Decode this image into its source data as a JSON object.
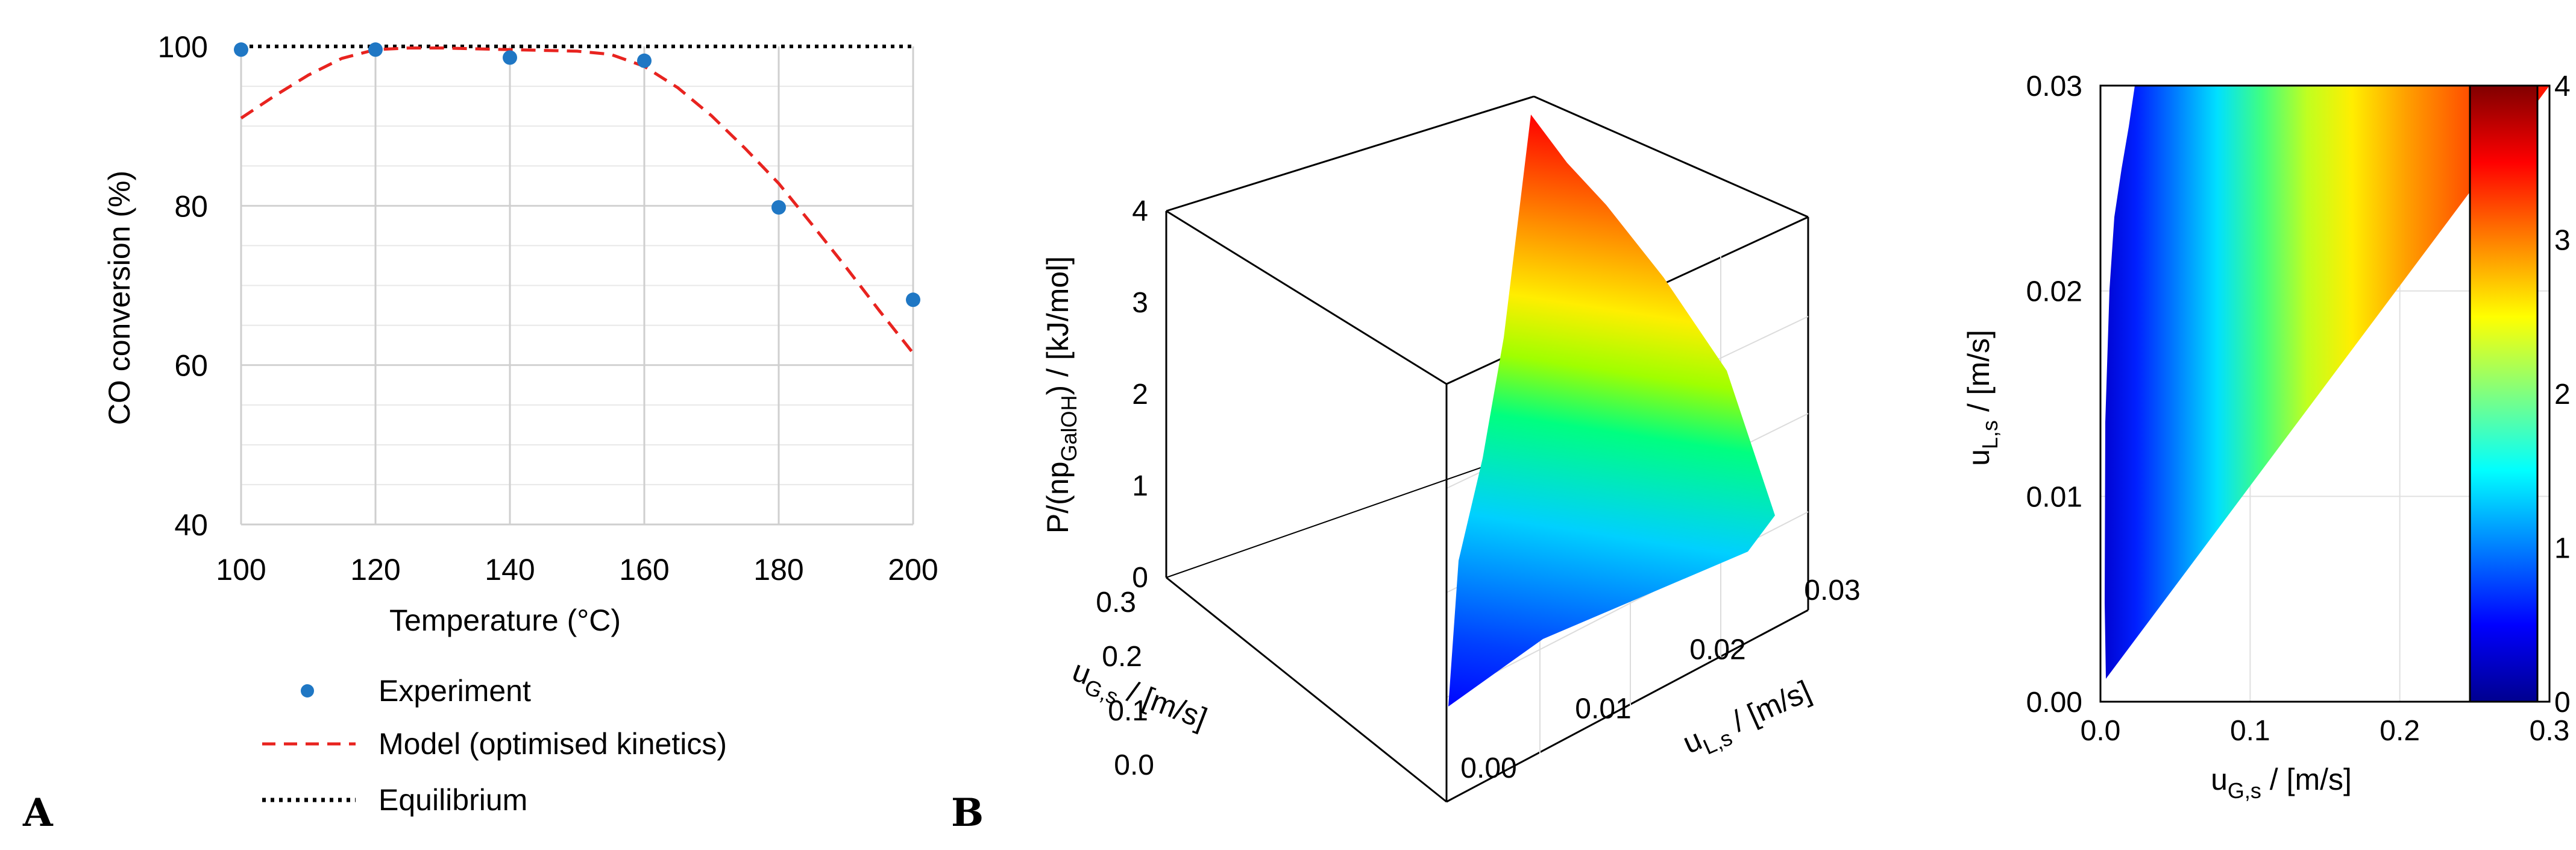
{
  "panels": {
    "a": "A",
    "b": "B"
  },
  "chart_data": [
    {
      "type": "scatter",
      "title": "",
      "xlabel": "Temperature (°C)",
      "ylabel": "CO conversion (%)",
      "xlim": [
        100,
        200
      ],
      "ylim": [
        40,
        100
      ],
      "xticks": [
        100,
        120,
        140,
        160,
        180,
        200
      ],
      "yticks": [
        40,
        60,
        80,
        100
      ],
      "grid": "on",
      "series": [
        {
          "name": "Experiment",
          "kind": "points",
          "color": "#1f77c4",
          "x": [
            100,
            120,
            140,
            160,
            180,
            200
          ],
          "y": [
            99.6,
            99.6,
            98.6,
            98.2,
            79.8,
            68.2
          ]
        },
        {
          "name": "Model (optimised kinetics)",
          "kind": "dashed-line",
          "color": "#e8231f",
          "x": [
            100,
            105,
            110,
            115,
            120,
            125,
            130,
            135,
            140,
            145,
            150,
            155,
            160,
            165,
            170,
            175,
            180,
            185,
            190,
            195,
            200
          ],
          "y": [
            91.0,
            93.8,
            96.4,
            98.5,
            99.6,
            99.8,
            99.8,
            99.7,
            99.6,
            99.5,
            99.4,
            99.0,
            97.5,
            94.8,
            91.3,
            87.2,
            82.8,
            77.6,
            72.3,
            66.8,
            61.5
          ]
        },
        {
          "name": "Equilibrium",
          "kind": "dotted-line",
          "color": "#000000",
          "x": [
            100,
            200
          ],
          "y": [
            100,
            100
          ]
        }
      ],
      "legend": [
        "Experiment",
        "Model (optimised kinetics)",
        "Equilibrium"
      ],
      "legend_position": "below"
    },
    {
      "type": "surface3d",
      "title": "",
      "xlabel_base": "u",
      "xlabel_sub": "G,s",
      "xlabel_unit": " / [m/s]",
      "ylabel_base": "u",
      "ylabel_sub": "L,s",
      "ylabel_unit": " / [m/s]",
      "zlabel_pre": "P/(np",
      "zlabel_sub": "GalOH",
      "zlabel_post": ") / [kJ/mol]",
      "xlim": [
        0,
        0.3
      ],
      "ylim": [
        0,
        0.03
      ],
      "zlim": [
        0,
        4
      ],
      "xticks": [
        "0.0",
        "0.1",
        "0.2",
        "0.3"
      ],
      "yticks": [
        "0.00",
        "0.01",
        "0.02",
        "0.03"
      ],
      "zticks": [
        "0",
        "1",
        "2",
        "3",
        "4"
      ],
      "colormap": "jet",
      "surface_outline": [
        {
          "uG": 0.0,
          "uL": 0.001,
          "P": 0.0
        },
        {
          "uG": 0.0,
          "uL": 0.03,
          "P": 3.3
        },
        {
          "uG": 0.045,
          "uL": 0.03,
          "P": 4.0
        },
        {
          "uG": 0.3,
          "uL": 0.03,
          "P": 3.3
        },
        {
          "uG": 0.3,
          "uL": 0.03,
          "P": 1.2
        },
        {
          "uG": 0.0,
          "uL": 0.001,
          "P": 0.0
        }
      ]
    },
    {
      "type": "heatmap",
      "title": "",
      "xlabel_base": "u",
      "xlabel_sub": "G,s",
      "xlabel_unit": " / [m/s]",
      "ylabel_base": "u",
      "ylabel_sub": "L,s",
      "ylabel_unit": " / [m/s]",
      "xlim": [
        0,
        0.3
      ],
      "ylim": [
        0,
        0.03
      ],
      "xticks": [
        "0.0",
        "0.1",
        "0.2",
        "0.3"
      ],
      "yticks": [
        "0.00",
        "0.01",
        "0.02",
        "0.03"
      ],
      "colormap": "jet",
      "colorbar_range": [
        0,
        4
      ],
      "colorbar_ticks": [
        "0",
        "1",
        "2",
        "3",
        "4"
      ],
      "region": "feasible region bounded by u_G,s ≈ 0.00–0.05 on the left and the line u_L,s = u_G,s / 10 on the right; color ≈ u_G,s × 13"
    }
  ]
}
